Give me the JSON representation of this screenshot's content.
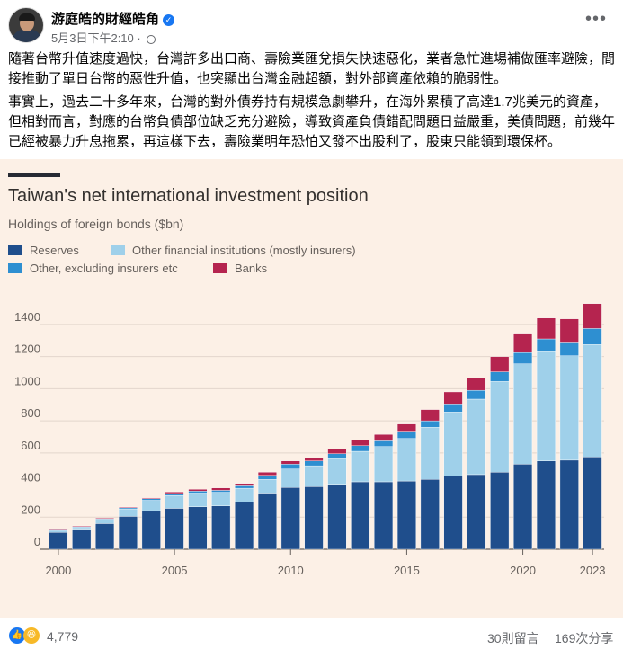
{
  "post": {
    "author": "游庭皓的財經皓角",
    "timestamp": "5月3日下午2:10",
    "paragraph1": "隨著台幣升值速度過快，台灣許多出口商、壽險業匯兌損失快速惡化，業者急忙進場補做匯率避險，間接推動了單日台幣的惡性升值，也突顯出台灣金融超額，對外部資產依賴的脆弱性。",
    "paragraph2": "事實上，過去二十多年來，台灣的對外債券持有規模急劇攀升，在海外累積了高達1.7兆美元的資產，但相對而言，對應的台幣負債部位缺乏充分避險，導致資產負債錯配問題日益嚴重，美債問題，前幾年已經被暴力升息拖累，再這樣下去，壽險業明年恐怕又發不出股利了，股東只能領到環保杯。"
  },
  "footer": {
    "reactions": "4,779",
    "comments": "30則留言",
    "shares": "169次分享"
  },
  "colors": {
    "reserves": "#1f4e8c",
    "other_fin": "#9fd0ea",
    "other_ex": "#2e8fd1",
    "banks": "#b5244f",
    "chart_bg": "#fcf0e6"
  },
  "chart_data": {
    "type": "bar",
    "stacked": true,
    "title": "Taiwan's net international investment position",
    "subtitle": "Holdings of foreign bonds ($bn)",
    "x": [
      2000,
      2001,
      2002,
      2003,
      2004,
      2005,
      2006,
      2007,
      2008,
      2009,
      2010,
      2011,
      2012,
      2013,
      2014,
      2015,
      2016,
      2017,
      2018,
      2019,
      2020,
      2021,
      2022,
      2023
    ],
    "xticks": [
      "2000",
      "2005",
      "2010",
      "2015",
      "2020",
      "2023"
    ],
    "xtick_values": [
      2000,
      2005,
      2010,
      2015,
      2020,
      2023
    ],
    "yticks": [
      "0",
      "200",
      "400",
      "600",
      "800",
      "1000",
      "1200",
      "1400"
    ],
    "ylim": [
      0,
      1450
    ],
    "series": [
      {
        "name": "Reserves",
        "color": "#1f4e8c",
        "values": [
          105,
          120,
          160,
          205,
          240,
          255,
          265,
          270,
          295,
          350,
          385,
          390,
          405,
          420,
          420,
          425,
          435,
          455,
          465,
          480,
          530,
          550,
          555,
          575
        ]
      },
      {
        "name": "Other financial institutions (mostly insurers)",
        "color": "#9fd0ea",
        "values": [
          10,
          15,
          25,
          45,
          65,
          80,
          85,
          85,
          85,
          85,
          115,
          130,
          160,
          190,
          220,
          265,
          325,
          400,
          470,
          565,
          625,
          680,
          650,
          700
        ]
      },
      {
        "name": "Other, excluding insurers etc",
        "color": "#2e8fd1",
        "values": [
          5,
          5,
          5,
          8,
          10,
          12,
          12,
          12,
          15,
          25,
          30,
          30,
          30,
          35,
          35,
          40,
          40,
          50,
          55,
          60,
          70,
          80,
          80,
          100
        ]
      },
      {
        "name": "Banks",
        "color": "#b5244f",
        "values": [
          5,
          5,
          5,
          5,
          5,
          10,
          12,
          15,
          15,
          20,
          20,
          20,
          30,
          35,
          40,
          50,
          70,
          75,
          75,
          95,
          115,
          130,
          150,
          155
        ]
      }
    ]
  }
}
